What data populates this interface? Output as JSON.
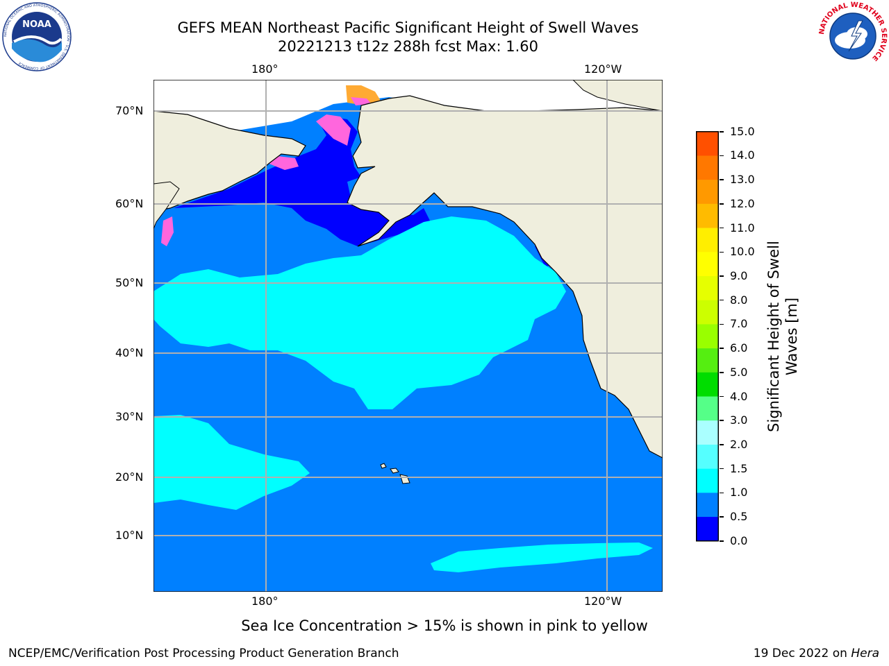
{
  "title": {
    "line1": "GEFS MEAN Northeast Pacific Significant Height of Swell Waves",
    "line2": "20221213 t12z 288h fcst   Max: 1.60"
  },
  "logos": {
    "left": {
      "name": "noaa-logo",
      "text": "NOAA",
      "ring_text": "NATIONAL OCEANIC AND ATMOSPHERIC ADMINISTRATION · U.S. DEPARTMENT OF COMMERCE"
    },
    "right": {
      "name": "nws-logo",
      "ring_text": "NATIONAL WEATHER SERVICE"
    }
  },
  "map": {
    "lon_labels_top": [
      "180°",
      "120°W"
    ],
    "lon_labels_bottom": [
      "180°",
      "120°W"
    ],
    "lat_labels": [
      "70°N",
      "60°N",
      "50°N",
      "40°N",
      "30°N",
      "20°N",
      "10°N"
    ],
    "colors": {
      "land": "#efeedd",
      "ocean_base": "#0080ff",
      "swell_1_0_1_5": "#00ffff",
      "swell_0_0_0_5": "#0000ff",
      "sea_ice_pink": "#ff66dd",
      "sea_ice_orange": "#ffaa33",
      "sea_ice_yellow": "#ffee33",
      "grid": "#b0b0b0",
      "coast": "#000000"
    }
  },
  "colorbar": {
    "label": "Significant Height of Swell Waves [m]",
    "ticks": [
      "15.0",
      "14.0",
      "13.0",
      "12.0",
      "11.0",
      "10.0",
      "9.0",
      "8.0",
      "7.0",
      "6.0",
      "5.0",
      "4.0",
      "3.0",
      "2.0",
      "1.5",
      "1.0",
      "0.5",
      "0.0"
    ],
    "colors": [
      "#ff0000",
      "#ff2000",
      "#ff5000",
      "#ff7800",
      "#ff9900",
      "#ffbb00",
      "#ffee00",
      "#ffff00",
      "#e6ff00",
      "#ccff00",
      "#99ff00",
      "#55ee11",
      "#00dd00",
      "#55ff88",
      "#aaffff",
      "#55ffff",
      "#00ffff",
      "#0080ff",
      "#0000ff"
    ]
  },
  "caption": "Sea Ice Concentration > 15% is shown in pink to yellow",
  "footer": {
    "left": "NCEP/EMC/Verification Post Processing Product Generation Branch",
    "right_date": "19 Dec 2022 on ",
    "right_host": "Hera"
  }
}
